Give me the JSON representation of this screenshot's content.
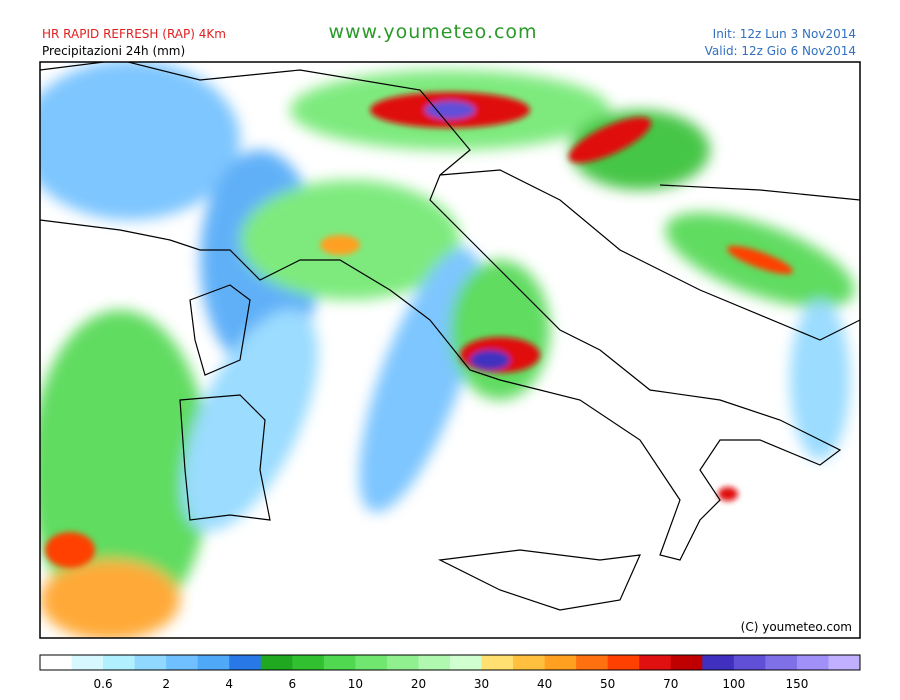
{
  "header": {
    "model": "HR RAPID REFRESH (RAP) 4Km",
    "field": "Precipitazioni 24h (mm)",
    "site": "www.youmeteo.com",
    "init": "Init: 12z Lun  3  Nov2014",
    "valid": "Valid: 12z Gio  6  Nov2014"
  },
  "map": {
    "copyright": "(C) youmeteo.com"
  },
  "legend": {
    "colors": [
      "#ffffff",
      "#d8f8ff",
      "#b0f0ff",
      "#90d8ff",
      "#70c0ff",
      "#50a8f8",
      "#2878e8",
      "#20a820",
      "#30c030",
      "#50d850",
      "#70e870",
      "#90f090",
      "#b0f8b0",
      "#d0ffd0",
      "#ffe070",
      "#ffc040",
      "#ffa020",
      "#ff7010",
      "#ff4000",
      "#e01010",
      "#c00000",
      "#4030c0",
      "#6050d8",
      "#8070e8",
      "#a090f8",
      "#c0b0ff"
    ],
    "labels": [
      "0.6",
      "2",
      "4",
      "6",
      "10",
      "20",
      "30",
      "40",
      "50",
      "70",
      "100",
      "150"
    ]
  }
}
